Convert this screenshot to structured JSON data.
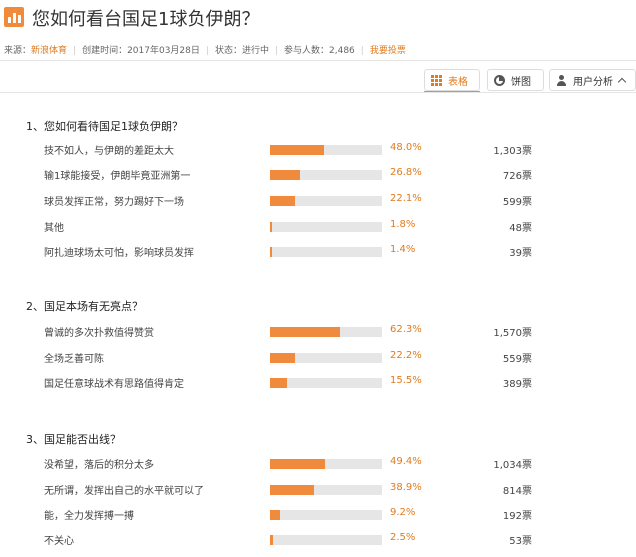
{
  "page": {
    "title": "您如何看台国足1球负伊朗？",
    "meta": {
      "source_label": "来源：",
      "source_value": "新浪体育",
      "created": "创建时间：2017年03月28日",
      "status": "状态：进行中",
      "participants": "参与人数：2,486",
      "vote_link": "我要投票"
    }
  },
  "tabs": [
    {
      "label": "表格",
      "icon": "grid-icon",
      "active": true
    },
    {
      "label": "饼图",
      "icon": "pie-chart-icon",
      "active": false
    },
    {
      "label": "用户分析",
      "icon": "user-icon",
      "active": false
    }
  ],
  "colors": {
    "accent": "#f08a3c",
    "accent_text": "#e07b1e",
    "track": "#e6e6e6"
  },
  "questions": [
    {
      "title": "1、您如何看待国足1球负伊朗？",
      "options": [
        {
          "label": "技不如人，与伊朗的差距太大",
          "percent": 48.0,
          "percent_text": "48.0%",
          "votes": "1,303票"
        },
        {
          "label": "输1球能接受，伊朗毕竟亚洲第一",
          "percent": 26.8,
          "percent_text": "26.8%",
          "votes": "726票"
        },
        {
          "label": "球员发挥正常，努力踢好下一场",
          "percent": 22.1,
          "percent_text": "22.1%",
          "votes": "599票"
        },
        {
          "label": "其他",
          "percent": 1.8,
          "percent_text": "1.8%",
          "votes": "48票"
        },
        {
          "label": "阿扎迪球场太可怕，影响球员发挥",
          "percent": 1.4,
          "percent_text": "1.4%",
          "votes": "39票"
        }
      ]
    },
    {
      "title": "2、国足本场有无亮点？",
      "options": [
        {
          "label": "曾诚的多次扑救值得赞赏",
          "percent": 62.3,
          "percent_text": "62.3%",
          "votes": "1,570票"
        },
        {
          "label": "全场乏善可陈",
          "percent": 22.2,
          "percent_text": "22.2%",
          "votes": "559票"
        },
        {
          "label": "国足任意球战术有思路值得肯定",
          "percent": 15.5,
          "percent_text": "15.5%",
          "votes": "389票"
        }
      ]
    },
    {
      "title": "3、国足能否出线？",
      "options": [
        {
          "label": "没希望，落后的积分太多",
          "percent": 49.4,
          "percent_text": "49.4%",
          "votes": "1,034票"
        },
        {
          "label": "无所谓，发挥出自己的水平就可以了",
          "percent": 38.9,
          "percent_text": "38.9%",
          "votes": "814票"
        },
        {
          "label": "能，全力发挥搏一搏",
          "percent": 9.2,
          "percent_text": "9.2%",
          "votes": "192票"
        },
        {
          "label": "不关心",
          "percent": 2.5,
          "percent_text": "2.5%",
          "votes": "53票"
        }
      ]
    }
  ]
}
